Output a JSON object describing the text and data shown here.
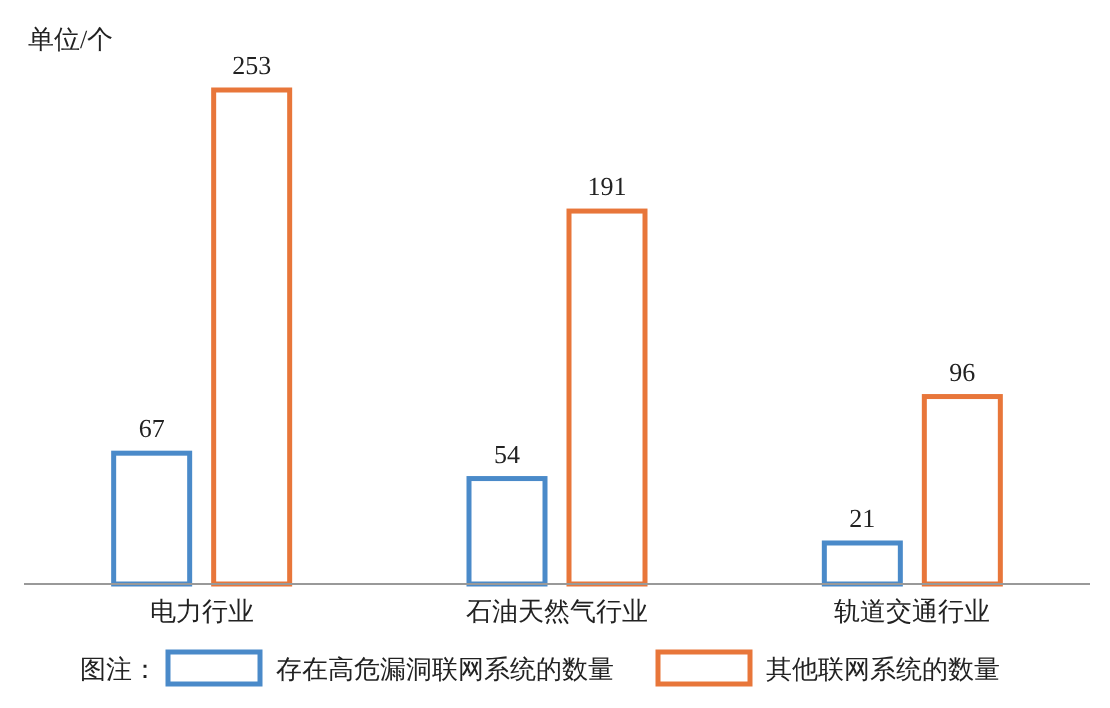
{
  "chart_data": {
    "type": "bar",
    "ylabel": "单位/个",
    "legend_title": "图注：",
    "categories": [
      "电力行业",
      "石油天然气行业",
      "轨道交通行业"
    ],
    "series": [
      {
        "name": "存在高危漏洞联网系统的数量",
        "color": "#4a8ac9",
        "values": [
          67,
          54,
          21
        ]
      },
      {
        "name": "其他联网系统的数量",
        "color": "#e8763a",
        "values": [
          253,
          191,
          96
        ]
      }
    ],
    "data_labels": true,
    "legend": "bottom"
  }
}
